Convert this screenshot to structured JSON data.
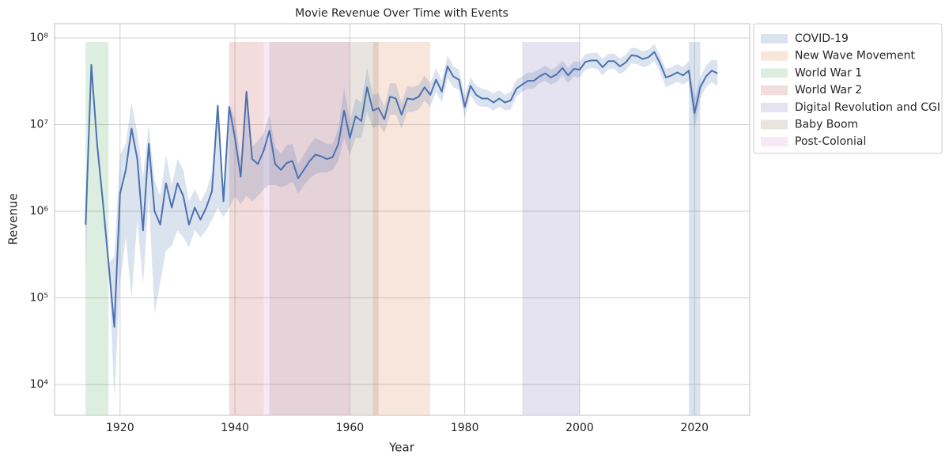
{
  "chart_data": {
    "type": "line",
    "title": "Movie Revenue Over Time with Events",
    "x_label": "Year",
    "y_label": "Revenue",
    "x": [
      1914,
      1915,
      1916,
      1917,
      1918,
      1919,
      1920,
      1921,
      1922,
      1923,
      1924,
      1925,
      1926,
      1927,
      1928,
      1929,
      1930,
      1931,
      1932,
      1933,
      1934,
      1935,
      1936,
      1937,
      1938,
      1939,
      1940,
      1941,
      1942,
      1943,
      1944,
      1945,
      1946,
      1947,
      1948,
      1949,
      1950,
      1951,
      1952,
      1953,
      1954,
      1955,
      1956,
      1957,
      1958,
      1959,
      1960,
      1961,
      1962,
      1963,
      1964,
      1965,
      1966,
      1967,
      1968,
      1969,
      1970,
      1971,
      1972,
      1973,
      1974,
      1975,
      1976,
      1977,
      1978,
      1979,
      1980,
      1981,
      1982,
      1983,
      1984,
      1985,
      1986,
      1987,
      1988,
      1989,
      1990,
      1991,
      1992,
      1993,
      1994,
      1995,
      1996,
      1997,
      1998,
      1999,
      2000,
      2001,
      2002,
      2003,
      2004,
      2005,
      2006,
      2007,
      2008,
      2009,
      2010,
      2011,
      2012,
      2013,
      2014,
      2015,
      2016,
      2017,
      2018,
      2019,
      2020,
      2021,
      2022,
      2023,
      2024
    ],
    "series": [
      {
        "color": "#4c72b0",
        "values": [
          700000,
          49000000,
          6000000,
          1300000,
          250000,
          46000,
          1600000,
          3000000,
          9000000,
          4000000,
          600000,
          6000000,
          1000000,
          700000,
          2100000,
          1100000,
          2100000,
          1500000,
          700000,
          1100000,
          800000,
          1100000,
          1700000,
          16500000,
          1300000,
          16000000,
          7000000,
          2500000,
          24000000,
          4000000,
          3500000,
          5000000,
          8500000,
          3500000,
          3000000,
          3600000,
          3800000,
          2400000,
          3000000,
          3800000,
          4500000,
          4300000,
          4000000,
          4200000,
          6000000,
          14500000,
          7000000,
          12500000,
          11000000,
          27000000,
          14500000,
          15500000,
          11500000,
          21000000,
          20000000,
          13000000,
          20000000,
          19500000,
          21000000,
          27000000,
          22000000,
          33000000,
          24000000,
          47000000,
          36000000,
          33000000,
          16000000,
          28000000,
          22000000,
          20000000,
          20000000,
          18000000,
          20000000,
          18000000,
          19000000,
          26000000,
          29000000,
          32000000,
          32000000,
          36000000,
          39000000,
          35000000,
          38000000,
          45000000,
          37000000,
          44000000,
          43000000,
          53000000,
          55000000,
          55000000,
          46000000,
          54000000,
          54000000,
          47000000,
          52000000,
          63000000,
          62000000,
          57000000,
          60000000,
          69000000,
          51000000,
          35000000,
          37000000,
          40000000,
          37000000,
          42000000,
          13500000,
          27000000,
          36000000,
          42000000,
          39000000
        ],
        "lower": [
          170000,
          49000000,
          6000000,
          1300000,
          250000,
          7000,
          150000,
          500000,
          100000,
          800000,
          140000,
          1500000,
          65000,
          150000,
          350000,
          400000,
          600000,
          500000,
          380000,
          600000,
          500000,
          600000,
          800000,
          1100000,
          850000,
          1100000,
          1500000,
          1200000,
          1500000,
          1300000,
          1500000,
          1800000,
          2000000,
          2000000,
          1900000,
          2000000,
          2200000,
          1600000,
          2000000,
          2400000,
          2700000,
          2800000,
          2800000,
          3000000,
          3800000,
          7000000,
          4500000,
          7000000,
          7000000,
          14000000,
          9000000,
          10000000,
          8000000,
          13000000,
          13000000,
          9000000,
          14000000,
          14000000,
          15000000,
          19000000,
          16000000,
          24000000,
          18000000,
          34000000,
          27000000,
          25000000,
          12000000,
          22000000,
          17000000,
          16000000,
          16000000,
          14500000,
          16000000,
          14500000,
          15000000,
          21000000,
          24000000,
          26000000,
          26000000,
          30000000,
          32000000,
          29000000,
          31000000,
          37000000,
          30000000,
          36000000,
          35000000,
          43000000,
          45000000,
          44000000,
          37000000,
          44000000,
          44000000,
          38000000,
          42000000,
          51000000,
          50000000,
          46000000,
          48000000,
          55000000,
          40000000,
          27000000,
          29000000,
          31000000,
          29000000,
          32000000,
          9000000,
          20000000,
          27000000,
          31000000,
          28000000
        ],
        "upper": [
          700000,
          49000000,
          6000000,
          1300000,
          250000,
          300000,
          4500000,
          6000000,
          18000000,
          8000000,
          2500000,
          10000000,
          2300000,
          1500000,
          4500000,
          2000000,
          4000000,
          3000000,
          1300000,
          1800000,
          1300000,
          1700000,
          2800000,
          17000000,
          1800000,
          17000000,
          12000000,
          4000000,
          25000000,
          5500000,
          6500000,
          8000000,
          13000000,
          5500000,
          4600000,
          5800000,
          6000000,
          3500000,
          4500000,
          5800000,
          7000000,
          6500000,
          6000000,
          6000000,
          9000000,
          27000000,
          11000000,
          20000000,
          18000000,
          45000000,
          22000000,
          23000000,
          16000000,
          30000000,
          30000000,
          18000000,
          28000000,
          27000000,
          29000000,
          37000000,
          30000000,
          45000000,
          32000000,
          63000000,
          47000000,
          43000000,
          21000000,
          35000000,
          28000000,
          26000000,
          25000000,
          23000000,
          25000000,
          22000000,
          24000000,
          33000000,
          36000000,
          40000000,
          40000000,
          44000000,
          48000000,
          43000000,
          47000000,
          55000000,
          45000000,
          54000000,
          53000000,
          65000000,
          67000000,
          68000000,
          57000000,
          66000000,
          66000000,
          58000000,
          64000000,
          77000000,
          76000000,
          70000000,
          74000000,
          85000000,
          63000000,
          44000000,
          46000000,
          50000000,
          46000000,
          54000000,
          20000000,
          35000000,
          48000000,
          56000000,
          55000000
        ]
      }
    ],
    "events": [
      {
        "name": "COVID-19",
        "color": "#4c72b0",
        "start": 2019,
        "end": 2021
      },
      {
        "name": "New Wave Movement",
        "color": "#dd8452",
        "start": 1964,
        "end": 1974
      },
      {
        "name": "World War 1",
        "color": "#55a868",
        "start": 1914,
        "end": 1918
      },
      {
        "name": "World War 2",
        "color": "#c44e52",
        "start": 1939,
        "end": 1945
      },
      {
        "name": "Digital Revolution and CGI",
        "color": "#8172b3",
        "start": 1990,
        "end": 2000
      },
      {
        "name": "Baby Boom",
        "color": "#937860",
        "start": 1946,
        "end": 1965
      },
      {
        "name": "Post-Colonial",
        "color": "#da8bc3",
        "start": 1945,
        "end": 1960
      }
    ],
    "xlim": [
      1908.6,
      2029.6
    ],
    "xticks": [
      1920,
      1940,
      1960,
      1980,
      2000,
      2020
    ],
    "ylim": [
      4400,
      146000000
    ],
    "yscale": "log",
    "yticks": [
      {
        "value": 10000,
        "label": "10⁴"
      },
      {
        "value": 100000,
        "label": "10⁵"
      },
      {
        "value": 1000000,
        "label": "10⁶"
      },
      {
        "value": 10000000,
        "label": "10⁷"
      },
      {
        "value": 100000000,
        "label": "10⁸"
      }
    ],
    "grid": true,
    "legend": "outside upper right"
  }
}
